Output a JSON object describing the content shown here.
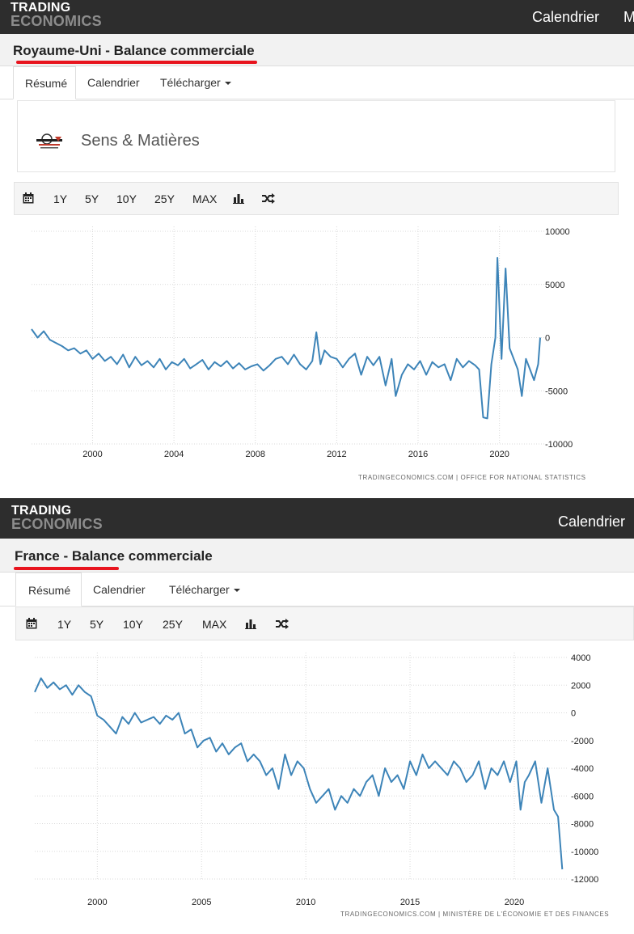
{
  "panels": [
    {
      "logo": {
        "line1": "TRADING",
        "line2": "ECONOMICS"
      },
      "nav": [
        "Calendrier",
        "M"
      ],
      "title": "Royaume-Uni - Balance commerciale",
      "tabs": [
        "Résumé",
        "Calendrier",
        "Télécharger"
      ],
      "sponsor": {
        "name": "Sens & Matières",
        "logo_text": "SENS MATIÈRES"
      },
      "toolbar": [
        "1Y",
        "5Y",
        "10Y",
        "25Y",
        "MAX"
      ],
      "source": "TRADINGECONOMICS.COM  |  OFFICE FOR NATIONAL STATISTICS"
    },
    {
      "logo": {
        "line1": "TRADING",
        "line2": "ECONOMICS"
      },
      "nav": [
        "Calendrier"
      ],
      "title": "France - Balance commerciale",
      "tabs": [
        "Résumé",
        "Calendrier",
        "Télécharger"
      ],
      "toolbar": [
        "1Y",
        "5Y",
        "10Y",
        "25Y",
        "MAX"
      ],
      "source": "TRADINGECONOMICS.COM  |  MINISTÈRE DE L'ÉCONOMIE ET DES FINANCES"
    }
  ],
  "colors": {
    "line": "#3d84b8",
    "accent_red": "#e8141e",
    "topbar": "#2d2d2d"
  },
  "chart_data": [
    {
      "type": "line",
      "title": "Royaume-Uni - Balance commerciale",
      "xlabel": "",
      "ylabel": "",
      "x_ticks": [
        "2000",
        "2004",
        "2008",
        "2012",
        "2016",
        "2020"
      ],
      "y_ticks": [
        10000,
        5000,
        0,
        -5000,
        -10000
      ],
      "xlim": [
        1997,
        2022.2
      ],
      "ylim": [
        -10000,
        10000
      ],
      "grid": true,
      "series": [
        {
          "x": [
            1997.0,
            1997.3,
            1997.6,
            1997.9,
            1998.2,
            1998.5,
            1998.8,
            1999.1,
            1999.4,
            1999.7,
            2000.0,
            2000.3,
            2000.6,
            2000.9,
            2001.2,
            2001.5,
            2001.8,
            2002.1,
            2002.4,
            2002.7,
            2003.0,
            2003.3,
            2003.6,
            2003.9,
            2004.2,
            2004.5,
            2004.8,
            2005.1,
            2005.4,
            2005.7,
            2006.0,
            2006.3,
            2006.6,
            2006.9,
            2007.2,
            2007.5,
            2007.8,
            2008.1,
            2008.4,
            2008.7,
            2009.0,
            2009.3,
            2009.6,
            2009.9,
            2010.2,
            2010.5,
            2010.8,
            2011.0,
            2011.2,
            2011.4,
            2011.7,
            2012.0,
            2012.3,
            2012.6,
            2012.9,
            2013.2,
            2013.5,
            2013.8,
            2014.1,
            2014.4,
            2014.7,
            2014.9,
            2015.2,
            2015.5,
            2015.8,
            2016.1,
            2016.4,
            2016.7,
            2017.0,
            2017.3,
            2017.6,
            2017.9,
            2018.2,
            2018.5,
            2018.8,
            2019.0,
            2019.2,
            2019.4,
            2019.6,
            2019.8,
            2019.9,
            2020.1,
            2020.3,
            2020.5,
            2020.7,
            2020.9,
            2021.1,
            2021.3,
            2021.5,
            2021.7,
            2021.9,
            2022.0
          ],
          "y": [
            800,
            0,
            600,
            -200,
            -500,
            -800,
            -1200,
            -1000,
            -1500,
            -1200,
            -2000,
            -1500,
            -2200,
            -1800,
            -2500,
            -1600,
            -2800,
            -1800,
            -2600,
            -2200,
            -2800,
            -2000,
            -3000,
            -2300,
            -2600,
            -2000,
            -2900,
            -2500,
            -2100,
            -3000,
            -2300,
            -2700,
            -2200,
            -2900,
            -2400,
            -3000,
            -2700,
            -2500,
            -3100,
            -2600,
            -2000,
            -1800,
            -2500,
            -1600,
            -2500,
            -3000,
            -2200,
            500,
            -2500,
            -1200,
            -1800,
            -2000,
            -2800,
            -2000,
            -1500,
            -3500,
            -1800,
            -2600,
            -1800,
            -4500,
            -2000,
            -5500,
            -3500,
            -2500,
            -3000,
            -2200,
            -3500,
            -2300,
            -2800,
            -2500,
            -4000,
            -2000,
            -2800,
            -2200,
            -2600,
            -3000,
            -7500,
            -7600,
            -2500,
            0,
            7500,
            -2000,
            6500,
            -1000,
            -2000,
            -3000,
            -5500,
            -2000,
            -3000,
            -4000,
            -2500,
            0
          ]
        }
      ]
    },
    {
      "type": "line",
      "title": "France - Balance commerciale",
      "xlabel": "",
      "ylabel": "",
      "x_ticks": [
        "2000",
        "2005",
        "2010",
        "2015",
        "2020"
      ],
      "y_ticks": [
        4000,
        2000,
        0,
        -2000,
        -4000,
        -6000,
        -8000,
        -10000,
        -12000
      ],
      "xlim": [
        1997,
        2022.6
      ],
      "ylim": [
        -12000,
        4000
      ],
      "grid": true,
      "series": [
        {
          "x": [
            1997.0,
            1997.3,
            1997.6,
            1997.9,
            1998.2,
            1998.5,
            1998.8,
            1999.1,
            1999.4,
            1999.7,
            2000.0,
            2000.3,
            2000.6,
            2000.9,
            2001.2,
            2001.5,
            2001.8,
            2002.1,
            2002.4,
            2002.7,
            2003.0,
            2003.3,
            2003.6,
            2003.9,
            2004.2,
            2004.5,
            2004.8,
            2005.1,
            2005.4,
            2005.7,
            2006.0,
            2006.3,
            2006.6,
            2006.9,
            2007.2,
            2007.5,
            2007.8,
            2008.1,
            2008.4,
            2008.7,
            2009.0,
            2009.3,
            2009.6,
            2009.9,
            2010.2,
            2010.5,
            2010.8,
            2011.1,
            2011.4,
            2011.7,
            2012.0,
            2012.3,
            2012.6,
            2012.9,
            2013.2,
            2013.5,
            2013.8,
            2014.1,
            2014.4,
            2014.7,
            2015.0,
            2015.3,
            2015.6,
            2015.9,
            2016.2,
            2016.5,
            2016.8,
            2017.1,
            2017.4,
            2017.7,
            2018.0,
            2018.3,
            2018.6,
            2018.9,
            2019.2,
            2019.5,
            2019.8,
            2020.1,
            2020.3,
            2020.5,
            2020.7,
            2021.0,
            2021.3,
            2021.6,
            2021.9,
            2022.1,
            2022.3
          ],
          "y": [
            1500,
            2500,
            1800,
            2200,
            1700,
            2000,
            1300,
            2000,
            1500,
            1200,
            -200,
            -500,
            -1000,
            -1500,
            -300,
            -800,
            0,
            -700,
            -500,
            -300,
            -800,
            -200,
            -500,
            0,
            -1500,
            -1200,
            -2500,
            -2000,
            -1800,
            -2800,
            -2200,
            -3000,
            -2500,
            -2200,
            -3500,
            -3000,
            -3500,
            -4500,
            -4000,
            -5500,
            -3000,
            -4500,
            -3500,
            -4000,
            -5500,
            -6500,
            -6000,
            -5500,
            -7000,
            -6000,
            -6500,
            -5500,
            -6000,
            -5000,
            -4500,
            -6000,
            -4000,
            -5000,
            -4500,
            -5500,
            -3500,
            -4500,
            -3000,
            -4000,
            -3500,
            -4000,
            -4500,
            -3500,
            -4000,
            -5000,
            -4500,
            -3500,
            -5500,
            -4000,
            -4500,
            -3500,
            -5000,
            -3500,
            -7000,
            -5000,
            -4500,
            -3500,
            -6500,
            -4000,
            -7000,
            -7500,
            -11300
          ]
        }
      ]
    }
  ]
}
